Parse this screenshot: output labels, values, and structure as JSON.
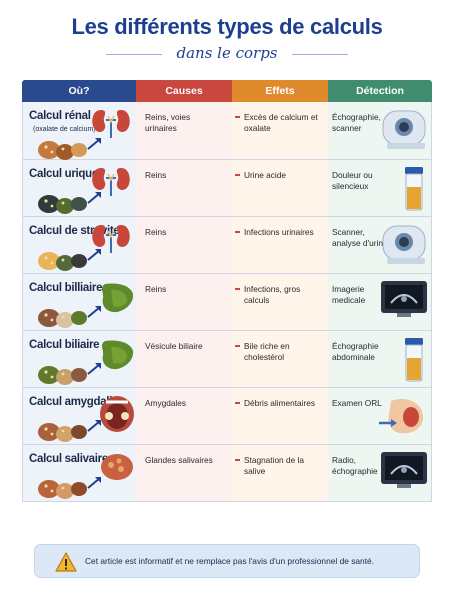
{
  "header": {
    "title": "Les différents types de calculs",
    "subtitle": "dans le corps"
  },
  "columns": [
    "Où?",
    "Causes",
    "Effets",
    "Détection"
  ],
  "rows": [
    {
      "name": "Calcul rénal",
      "note": "(oxalate de calcium)",
      "cause": "Reins, voies urinaires",
      "effect": "Excès de calcium et oxalate",
      "detection": "Échographie, scanner",
      "icon": "kidney-icon",
      "device_icon": "ct-scanner-icon"
    },
    {
      "name": "Calcul urique",
      "note": "",
      "cause": "Reins",
      "effect": "Urine acide",
      "detection": "Douleur ou silencieux",
      "icon": "kidney-icon",
      "device_icon": "urine-sample-icon"
    },
    {
      "name": "Calcul de struvite",
      "note": "",
      "cause": "Reins",
      "effect": "Infections urinaires",
      "detection": "Scanner, analyse d'urine",
      "icon": "kidney-icon",
      "device_icon": "scanner-icon"
    },
    {
      "name": "Calcul billiaire",
      "note": "",
      "cause": "Reins",
      "effect": "Infections, gros calculs",
      "detection": "Imagerie medicale",
      "icon": "gallbladder-icon",
      "device_icon": "ultrasound-monitor-icon"
    },
    {
      "name": "Calcul biliaire",
      "note": "",
      "cause": "Vésicule biliaire",
      "effect": "Bile riche en cholestérol",
      "detection": "Échographie abdominale",
      "icon": "gallbladder-icon",
      "device_icon": "sample-tube-icon"
    },
    {
      "name": "Calcul amygdalien",
      "note": "",
      "cause": "Amygdales",
      "effect": "Débris alimentaires",
      "detection": "Examen ORL",
      "icon": "throat-icon",
      "device_icon": "ent-exam-icon"
    },
    {
      "name": "Calcul salivaire",
      "note": "",
      "cause": "Glandes salivaires",
      "effect": "Stagnation de la salive",
      "detection": "Radio, échographie",
      "icon": "salivary-gland-icon",
      "device_icon": "xray-monitor-icon"
    }
  ],
  "disclaimer": {
    "text": "Cet article est informatif et ne remplace pas l'avis d'un professionnel de santé.",
    "icon": "warning-icon"
  },
  "colors": {
    "title": "#1d3f8f",
    "col_where": "#2a4a8e",
    "col_causes": "#c8473f",
    "col_effects": "#e08a2e",
    "col_detection": "#3f8c6f"
  }
}
